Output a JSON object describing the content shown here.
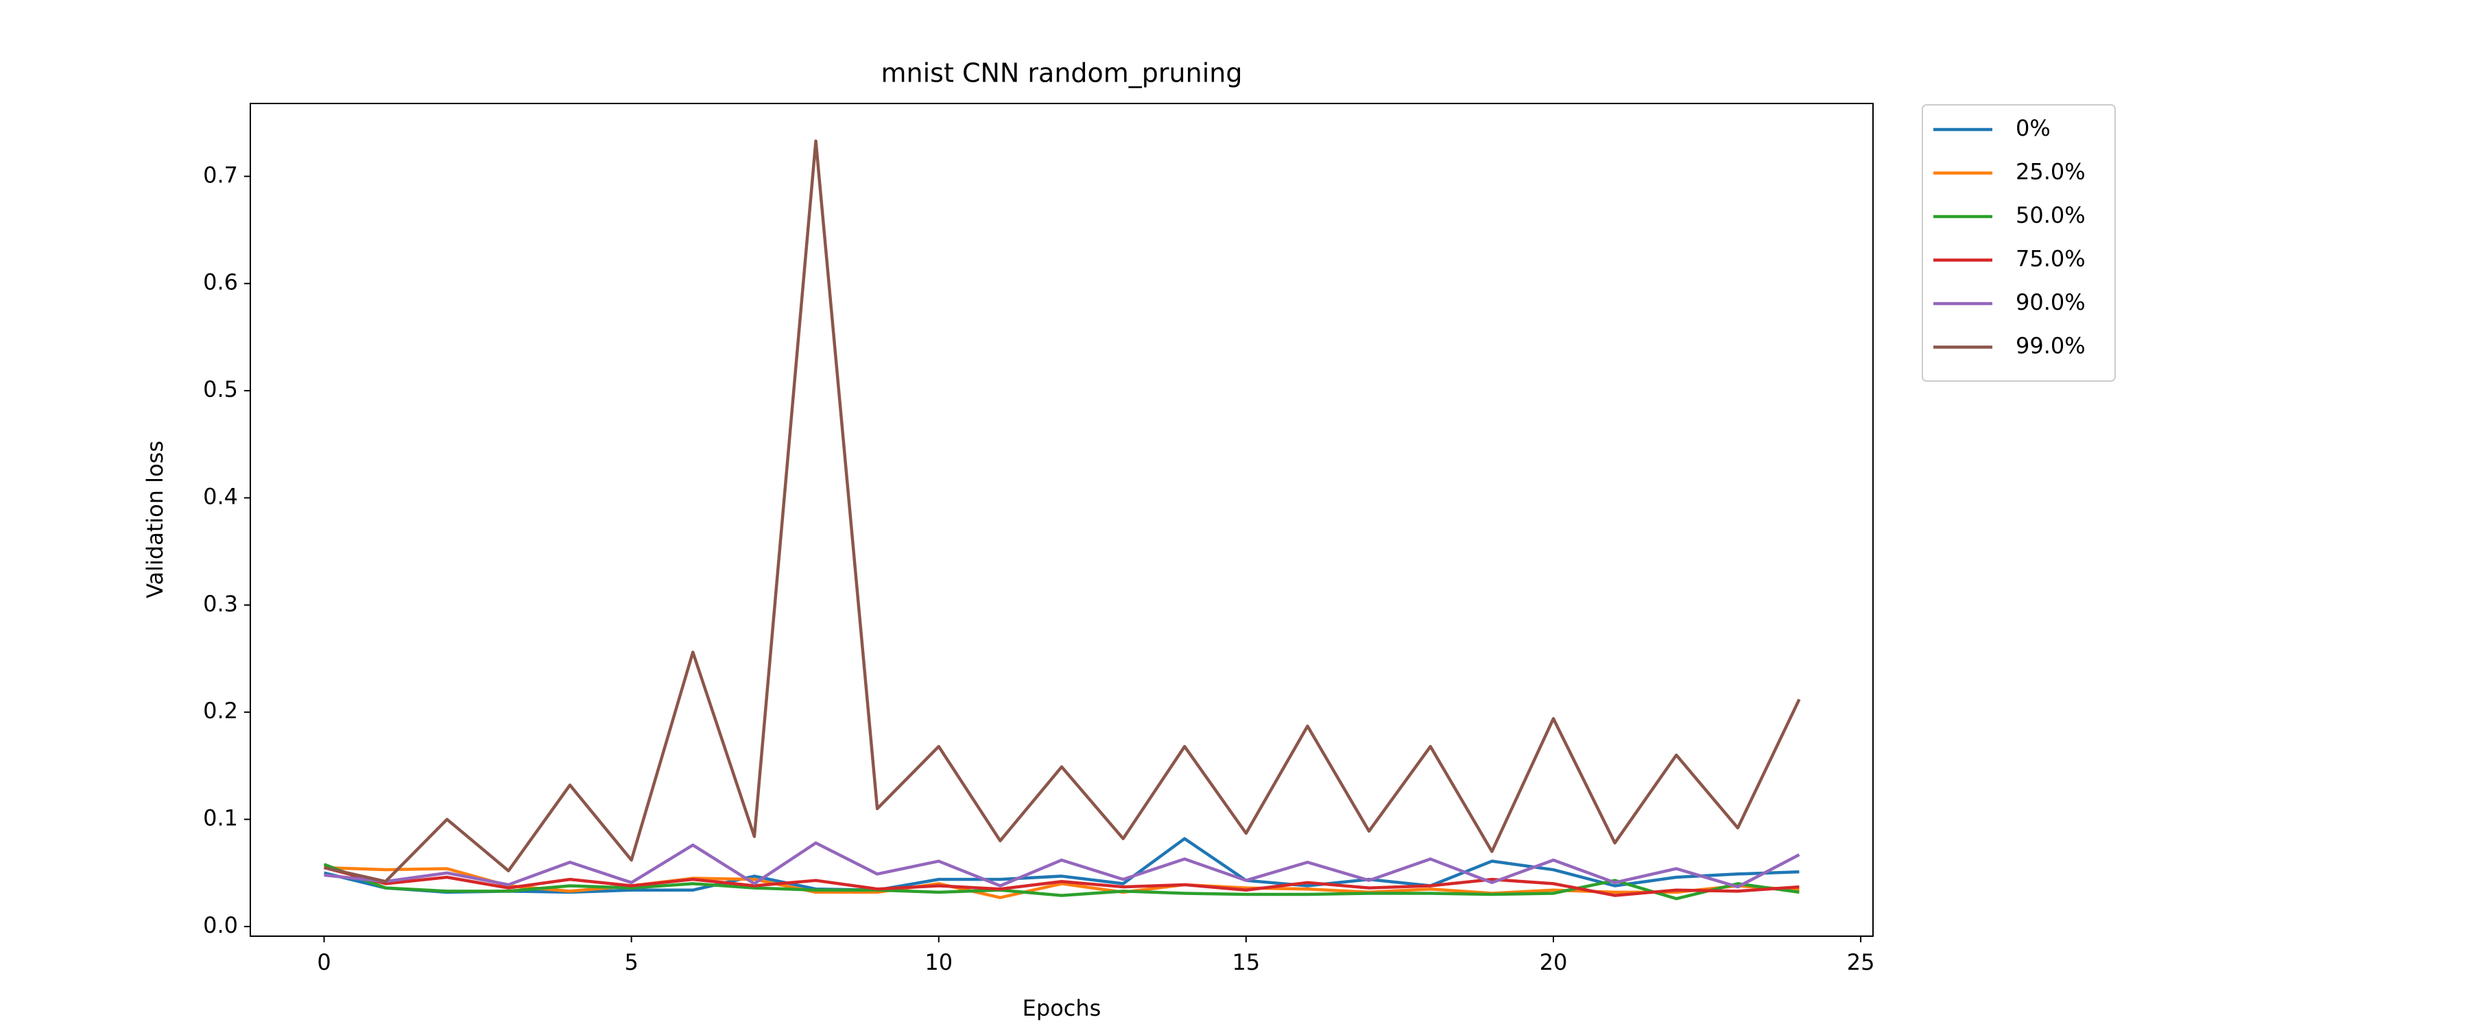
{
  "chart_data": {
    "type": "line",
    "title": "mnist CNN random_pruning",
    "x_label": "Epochs",
    "y_label": "Validation loss",
    "x": [
      0,
      1,
      2,
      3,
      4,
      5,
      6,
      7,
      8,
      9,
      10,
      11,
      12,
      13,
      14,
      15,
      16,
      17,
      18,
      19,
      20,
      21,
      22,
      23,
      24
    ],
    "series": [
      {
        "name": "0%",
        "color": "#1f77b4",
        "values": [
          0.05,
          0.036,
          0.032,
          0.033,
          0.032,
          0.034,
          0.034,
          0.047,
          0.035,
          0.034,
          0.044,
          0.044,
          0.047,
          0.04,
          0.082,
          0.043,
          0.038,
          0.044,
          0.038,
          0.061,
          0.053,
          0.038,
          0.046,
          0.049,
          0.051
        ]
      },
      {
        "name": "25.0%",
        "color": "#ff7f0e",
        "values": [
          0.055,
          0.053,
          0.054,
          0.038,
          0.033,
          0.038,
          0.045,
          0.044,
          0.032,
          0.032,
          0.04,
          0.027,
          0.04,
          0.032,
          0.039,
          0.036,
          0.035,
          0.032,
          0.035,
          0.031,
          0.034,
          0.032,
          0.032,
          0.038,
          0.034
        ]
      },
      {
        "name": "50.0%",
        "color": "#2ca02c",
        "values": [
          0.058,
          0.036,
          0.033,
          0.033,
          0.038,
          0.036,
          0.04,
          0.036,
          0.034,
          0.034,
          0.032,
          0.034,
          0.029,
          0.033,
          0.031,
          0.03,
          0.03,
          0.031,
          0.031,
          0.03,
          0.031,
          0.043,
          0.026,
          0.04,
          0.032
        ]
      },
      {
        "name": "75.0%",
        "color": "#d62728",
        "values": [
          0.055,
          0.04,
          0.046,
          0.036,
          0.044,
          0.038,
          0.044,
          0.038,
          0.043,
          0.035,
          0.038,
          0.035,
          0.042,
          0.037,
          0.039,
          0.034,
          0.041,
          0.036,
          0.038,
          0.044,
          0.04,
          0.029,
          0.034,
          0.033,
          0.037
        ]
      },
      {
        "name": "90.0%",
        "color": "#9467bd",
        "values": [
          0.048,
          0.042,
          0.05,
          0.039,
          0.06,
          0.041,
          0.076,
          0.04,
          0.078,
          0.049,
          0.061,
          0.038,
          0.062,
          0.044,
          0.063,
          0.043,
          0.06,
          0.043,
          0.063,
          0.041,
          0.062,
          0.041,
          0.054,
          0.037,
          0.067
        ]
      },
      {
        "name": "99.0%",
        "color": "#8c564b",
        "values": [
          0.055,
          0.042,
          0.1,
          0.052,
          0.132,
          0.062,
          0.256,
          0.084,
          0.733,
          0.11,
          0.168,
          0.08,
          0.149,
          0.082,
          0.168,
          0.087,
          0.187,
          0.089,
          0.168,
          0.07,
          0.194,
          0.078,
          0.16,
          0.092,
          0.212
        ]
      }
    ],
    "xlim": [
      -1.2,
      25.2
    ],
    "xticks": [
      0,
      5,
      10,
      15,
      20,
      25
    ],
    "ylim": [
      -0.009,
      0.768
    ],
    "yticks": [
      {
        "value": 0,
        "label": "0.0"
      },
      0.1,
      0.2,
      0.3,
      0.4,
      0.5,
      0.6,
      0.7
    ],
    "legend": "outside-upper-right"
  }
}
